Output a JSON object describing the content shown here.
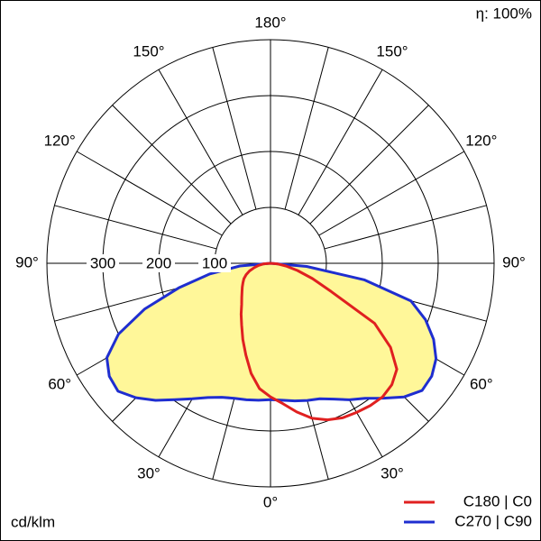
{
  "chart_data": {
    "type": "polar",
    "efficiency_label": "η: 100%",
    "unit": "cd/klm",
    "rlim": [
      0,
      400
    ],
    "rticks": [
      100,
      200,
      300
    ],
    "angle_ticks": [
      {
        "value": 0,
        "label": "0°"
      },
      {
        "value": 30,
        "label": "30°"
      },
      {
        "value": 60,
        "label": "60°"
      },
      {
        "value": 90,
        "label": "90°"
      },
      {
        "value": 120,
        "label": "120°"
      },
      {
        "value": 150,
        "label": "150°"
      },
      {
        "value": 180,
        "label": "180°"
      }
    ],
    "angles": [
      0,
      5,
      10,
      15,
      20,
      25,
      30,
      35,
      40,
      45,
      50,
      55,
      60,
      65,
      70,
      75,
      80,
      85,
      90
    ],
    "series": [
      {
        "name": "C180 | C0",
        "color": "#e02020",
        "fill": null,
        "values_left": [
          239,
          225,
          200,
          170,
          145,
          122,
          105,
          90,
          80,
          72,
          66,
          60,
          55,
          48,
          40,
          30,
          22,
          12,
          0
        ],
        "values_right": [
          239,
          252,
          270,
          287,
          298,
          305,
          308,
          311,
          312,
          307,
          295,
          262,
          215,
          120,
          80,
          50,
          28,
          12,
          0
        ]
      },
      {
        "name": "C270 | C90",
        "color": "#1f2ed0",
        "fill": "#fff799",
        "values_left": [
          244,
          246,
          248,
          250,
          255,
          265,
          280,
          298,
          320,
          340,
          356,
          352,
          338,
          300,
          240,
          170,
          110,
          55,
          0
        ],
        "values_right": [
          244,
          246,
          250,
          254,
          258,
          268,
          282,
          295,
          315,
          338,
          354,
          352,
          342,
          322,
          295,
          260,
          170,
          65,
          0
        ]
      }
    ]
  }
}
